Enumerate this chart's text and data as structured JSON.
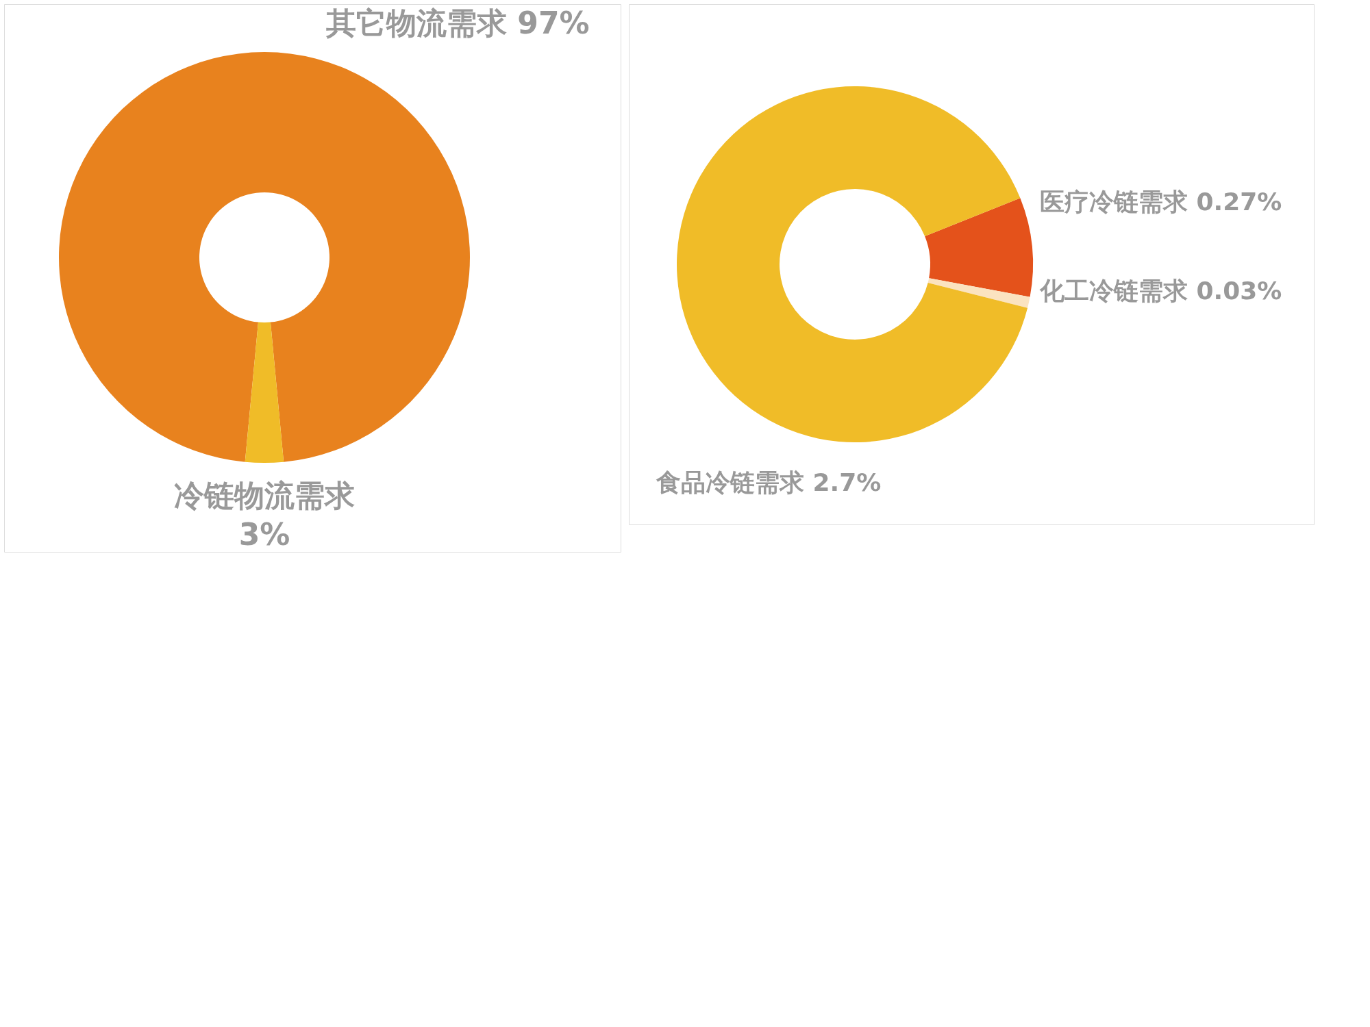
{
  "chart_data": [
    {
      "type": "donut",
      "categories": [
        "其它物流需求",
        "冷链物流需求"
      ],
      "values": [
        97,
        3
      ],
      "colors": [
        "#e8821e",
        "#f0bc28"
      ],
      "value_labels": [
        "97%",
        "3%"
      ]
    },
    {
      "type": "donut",
      "categories": [
        "医疗冷链需求",
        "化工冷链需求",
        "食品冷链需求"
      ],
      "values": [
        0.27,
        0.03,
        2.7
      ],
      "colors": [
        "#e4521b",
        "#fbe3c0",
        "#f0bc28"
      ],
      "value_labels": [
        "0.27%",
        "0.03%",
        "2.7%"
      ]
    }
  ]
}
